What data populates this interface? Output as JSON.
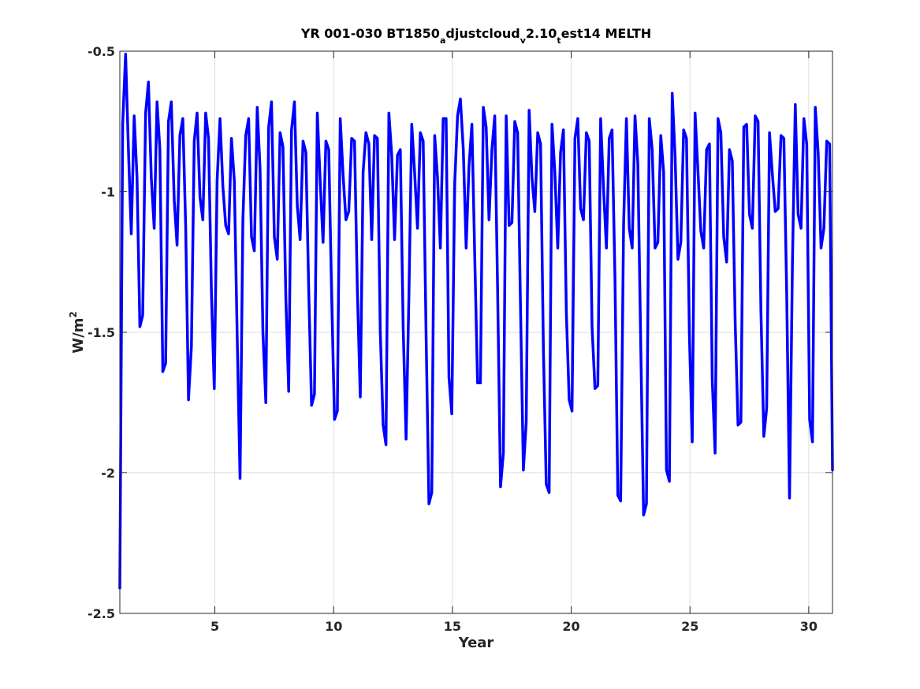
{
  "chart_data": {
    "type": "line",
    "title_parts": {
      "p1": "YR 001-030 BT1850",
      "s1": "a",
      "p2": "djustcloud",
      "s2": "v",
      "p3": "2.10",
      "s3": "t",
      "p4": "est14 MELTH"
    },
    "xlabel": "Year",
    "ylabel": {
      "base": "W/m",
      "sup": "2"
    },
    "xlim": [
      1,
      31
    ],
    "ylim": [
      -2.5,
      -0.5
    ],
    "xticks": [
      5,
      10,
      15,
      20,
      25,
      30
    ],
    "xtick_labels": [
      "5",
      "10",
      "15",
      "20",
      "25",
      "30"
    ],
    "yticks": [
      -2.5,
      -2,
      -1.5,
      -1,
      -0.5
    ],
    "ytick_labels": [
      "-2.5",
      "-2",
      "-1.5",
      "-1",
      "-0.5"
    ],
    "grid": true,
    "colors": {
      "line": "#0000ff",
      "grid": "#dedede",
      "axis": "#262626"
    },
    "series": [
      {
        "monthly_y": [
          -2.41,
          -0.76,
          -0.51,
          -0.85,
          -1.15,
          -0.73,
          -0.95,
          -1.48,
          -1.44,
          -0.72,
          -0.61,
          -0.95,
          -1.13,
          -0.68,
          -0.85,
          -1.64,
          -1.61,
          -0.75,
          -0.68,
          -1.03,
          -1.19,
          -0.8,
          -0.74,
          -1.12,
          -1.74,
          -1.55,
          -0.82,
          -0.72,
          -1.02,
          -1.1,
          -0.72,
          -0.81,
          -1.36,
          -1.7,
          -0.96,
          -0.74,
          -0.98,
          -1.12,
          -1.15,
          -0.81,
          -0.96,
          -1.52,
          -2.02,
          -1.1,
          -0.8,
          -0.74,
          -1.16,
          -1.21,
          -0.7,
          -0.92,
          -1.5,
          -1.75,
          -0.77,
          -0.68,
          -1.16,
          -1.24,
          -0.79,
          -0.84,
          -1.38,
          -1.71,
          -0.78,
          -0.68,
          -1.05,
          -1.17,
          -0.82,
          -0.86,
          -1.35,
          -1.76,
          -1.72,
          -0.72,
          -0.96,
          -1.18,
          -0.82,
          -0.85,
          -1.37,
          -1.81,
          -1.78,
          -0.74,
          -0.94,
          -1.1,
          -1.07,
          -0.81,
          -0.82,
          -1.35,
          -1.73,
          -0.93,
          -0.79,
          -0.83,
          -1.17,
          -0.8,
          -0.81,
          -1.5,
          -1.83,
          -1.9,
          -0.72,
          -0.87,
          -1.17,
          -0.87,
          -0.85,
          -1.48,
          -1.88,
          -1.37,
          -0.76,
          -0.93,
          -1.13,
          -0.79,
          -0.82,
          -1.51,
          -2.11,
          -2.07,
          -0.8,
          -0.95,
          -1.2,
          -0.74,
          -0.74,
          -1.66,
          -1.79,
          -0.97,
          -0.73,
          -0.67,
          -0.85,
          -1.2,
          -0.91,
          -0.76,
          -1.23,
          -1.68,
          -1.68,
          -0.7,
          -0.77,
          -1.1,
          -0.85,
          -0.73,
          -1.35,
          -2.05,
          -1.93,
          -0.73,
          -1.12,
          -1.11,
          -0.75,
          -0.79,
          -1.42,
          -1.99,
          -1.82,
          -0.71,
          -0.95,
          -1.07,
          -0.79,
          -0.83,
          -1.56,
          -2.04,
          -2.07,
          -0.76,
          -0.93,
          -1.2,
          -0.86,
          -0.78,
          -1.43,
          -1.74,
          -1.78,
          -0.81,
          -0.74,
          -1.06,
          -1.1,
          -0.79,
          -0.82,
          -1.48,
          -1.7,
          -1.69,
          -0.74,
          -0.99,
          -1.2,
          -0.81,
          -0.78,
          -1.31,
          -2.08,
          -2.1,
          -1.12,
          -0.74,
          -1.13,
          -1.2,
          -0.73,
          -0.9,
          -1.55,
          -2.15,
          -2.11,
          -0.74,
          -0.85,
          -1.2,
          -1.18,
          -0.8,
          -0.93,
          -1.99,
          -2.03,
          -0.65,
          -0.87,
          -1.24,
          -1.18,
          -0.78,
          -0.81,
          -1.51,
          -1.89,
          -0.72,
          -0.93,
          -1.14,
          -1.2,
          -0.85,
          -0.83,
          -1.67,
          -1.93,
          -0.74,
          -0.79,
          -1.16,
          -1.25,
          -0.85,
          -0.89,
          -1.47,
          -1.83,
          -1.82,
          -0.77,
          -0.76,
          -1.08,
          -1.13,
          -0.73,
          -0.75,
          -1.42,
          -1.87,
          -1.77,
          -0.79,
          -0.94,
          -1.07,
          -1.06,
          -0.8,
          -0.81,
          -1.36,
          -2.09,
          -1.25,
          -0.69,
          -1.08,
          -1.13,
          -0.74,
          -0.83,
          -1.81,
          -1.89,
          -0.7,
          -0.86,
          -1.2,
          -1.13,
          -0.82,
          -0.83,
          -1.99
        ]
      }
    ]
  }
}
